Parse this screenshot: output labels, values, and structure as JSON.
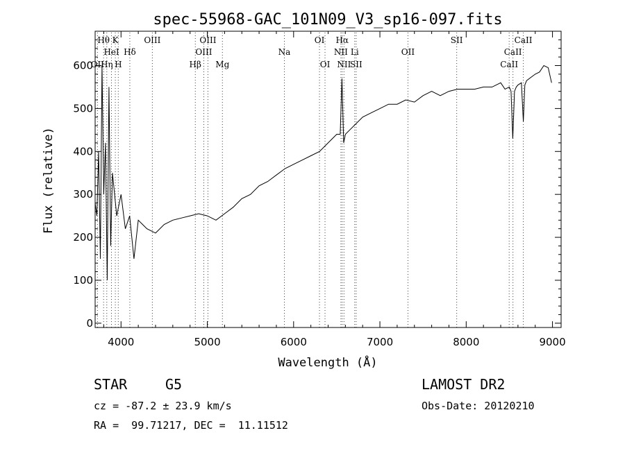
{
  "chart_data": {
    "type": "line",
    "title": "spec-55968-GAC_101N09_V3_sp16-097.fits",
    "xlabel": "Wavelength (Å)",
    "ylabel": "Flux (relative)",
    "xlim": [
      3700,
      9100
    ],
    "ylim": [
      -10,
      680
    ],
    "xticks": [
      4000,
      5000,
      6000,
      7000,
      8000,
      9000
    ],
    "yticks": [
      0,
      100,
      200,
      300,
      400,
      500,
      600
    ],
    "line_color": "#000000",
    "marker_color": "#cc0000",
    "series": [
      {
        "x": [
          3700,
          3720,
          3740,
          3760,
          3780,
          3800,
          3820,
          3840,
          3860,
          3880,
          3900,
          3950,
          4000,
          4050,
          4100,
          4150,
          4200,
          4250,
          4300,
          4400,
          4500,
          4600,
          4700,
          4800,
          4900,
          5000,
          5100,
          5200,
          5300,
          5400,
          5500,
          5600,
          5700,
          5800,
          5900,
          6000,
          6100,
          6200,
          6300,
          6400,
          6500,
          6540,
          6560,
          6580,
          6600,
          6650,
          6700,
          6800,
          6900,
          7000,
          7100,
          7200,
          7300,
          7400,
          7500,
          7600,
          7700,
          7800,
          7900,
          8000,
          8100,
          8200,
          8300,
          8400,
          8450,
          8500,
          8520,
          8540,
          8560,
          8580,
          8600,
          8640,
          8662,
          8680,
          8700,
          8800,
          8850,
          8900,
          8950,
          8990
        ],
        "y": [
          280,
          250,
          400,
          150,
          600,
          300,
          420,
          100,
          550,
          180,
          350,
          250,
          300,
          220,
          250,
          150,
          240,
          230,
          220,
          210,
          230,
          240,
          245,
          250,
          255,
          250,
          240,
          255,
          270,
          290,
          300,
          320,
          330,
          345,
          360,
          370,
          380,
          390,
          400,
          420,
          440,
          440,
          570,
          420,
          440,
          450,
          460,
          480,
          490,
          500,
          510,
          510,
          520,
          515,
          530,
          540,
          530,
          540,
          545,
          545,
          545,
          550,
          550,
          560,
          545,
          550,
          540,
          430,
          540,
          550,
          555,
          560,
          470,
          555,
          565,
          580,
          585,
          600,
          595,
          560
        ]
      }
    ],
    "line_markers": [
      {
        "label": "Hθ",
        "wavelength": 3798,
        "row": 1
      },
      {
        "label": "K",
        "wavelength": 3934,
        "row": 1
      },
      {
        "label": "OIII",
        "wavelength": 4363,
        "row": 1
      },
      {
        "label": "OIII",
        "wavelength": 5007,
        "row": 1
      },
      {
        "label": "OI",
        "wavelength": 6300,
        "row": 1
      },
      {
        "label": "Hα",
        "wavelength": 6563,
        "row": 1
      },
      {
        "label": "SII",
        "wavelength": 7890,
        "row": 1
      },
      {
        "label": "CaII",
        "wavelength": 8662,
        "row": 1
      },
      {
        "label": "HeI",
        "wavelength": 3889,
        "row": 2
      },
      {
        "label": "Hδ",
        "wavelength": 4102,
        "row": 2
      },
      {
        "label": "OIII",
        "wavelength": 4959,
        "row": 2
      },
      {
        "label": "Na",
        "wavelength": 5893,
        "row": 2
      },
      {
        "label": "NII",
        "wavelength": 6548,
        "row": 2
      },
      {
        "label": "Li",
        "wavelength": 6708,
        "row": 2
      },
      {
        "label": "OII",
        "wavelength": 7325,
        "row": 2
      },
      {
        "label": "CaII",
        "wavelength": 8542,
        "row": 2
      },
      {
        "label": "OII",
        "wavelength": 3727,
        "row": 3
      },
      {
        "label": "Hη",
        "wavelength": 3835,
        "row": 3
      },
      {
        "label": "H",
        "wavelength": 3968,
        "row": 3
      },
      {
        "label": "Hβ",
        "wavelength": 4861,
        "row": 3
      },
      {
        "label": "Mg",
        "wavelength": 5175,
        "row": 3
      },
      {
        "label": "OI",
        "wavelength": 6364,
        "row": 3
      },
      {
        "label": "NII",
        "wavelength": 6584,
        "row": 3
      },
      {
        "label": "SII",
        "wavelength": 6725,
        "row": 3
      },
      {
        "label": "CaII",
        "wavelength": 8498,
        "row": 3
      }
    ]
  },
  "info": {
    "class_label": "STAR",
    "subclass": "G5",
    "survey": "LAMOST DR2",
    "cz_line": "cz = -87.2 ± 23.9 km/s",
    "obs_date_line": "Obs-Date: 20120210",
    "coord_line": "RA =  99.71217, DEC =  11.11512"
  }
}
